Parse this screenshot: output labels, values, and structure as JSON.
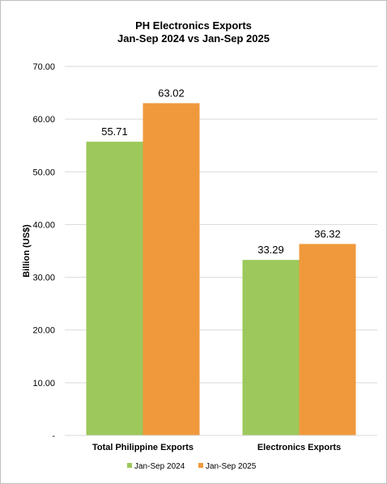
{
  "chart_data": {
    "type": "bar",
    "title": "PH Electronics Exports",
    "subtitle": "Jan-Sep 2024 vs Jan-Sep 2025",
    "xlabel": "",
    "ylabel": "Billion (US$)",
    "categories": [
      "Total Philippine Exports",
      "Electronics Exports"
    ],
    "series": [
      {
        "name": "Jan-Sep 2024",
        "values": [
          55.71,
          33.29
        ],
        "color": "#9dc85b"
      },
      {
        "name": "Jan-Sep 2025",
        "values": [
          63.02,
          36.32
        ],
        "color": "#f0993c"
      }
    ],
    "ylim": [
      0,
      70
    ],
    "yticks": [
      0,
      10,
      20,
      30,
      40,
      50,
      60,
      70
    ],
    "ytick_labels": [
      "-",
      "10.00",
      "20.00",
      "30.00",
      "40.00",
      "50.00",
      "60.00",
      "70.00"
    ],
    "data_labels": [
      [
        "55.71",
        "33.29"
      ],
      [
        "63.02",
        "36.32"
      ]
    ],
    "grid": true,
    "legend_position": "bottom"
  }
}
